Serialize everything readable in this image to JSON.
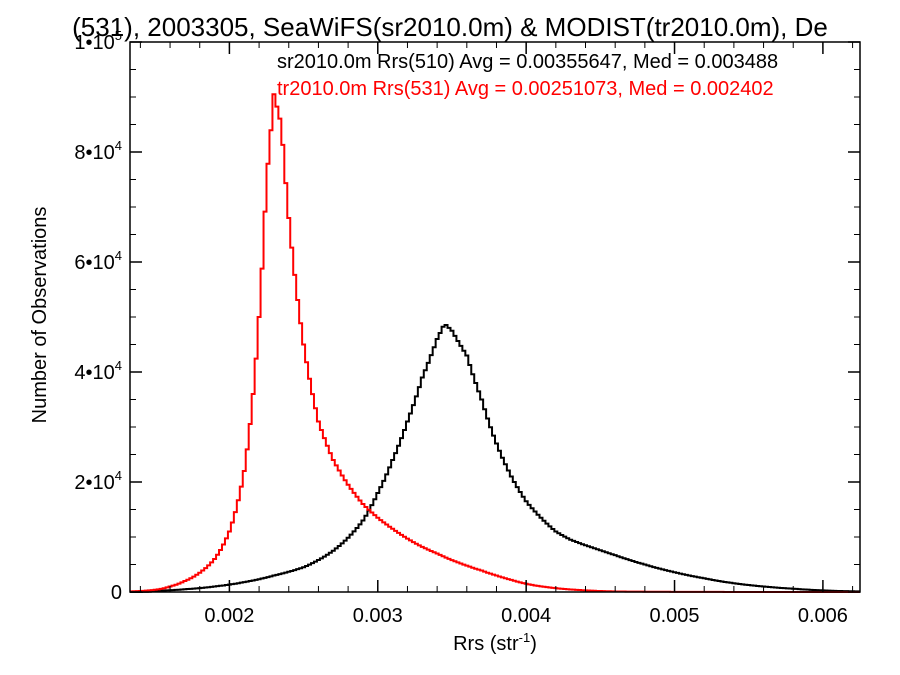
{
  "chart_data": {
    "type": "histogram",
    "title": "(531), 2003305, SeaWiFS(sr2010.0m) & MODIST(tr2010.0m), De",
    "xlabel": "Rrs (str",
    "xlabel_sup": "-1",
    "xlabel_close": ")",
    "ylabel": "Number of Observations",
    "xlim": [
      0.00133,
      0.00625
    ],
    "ylim": [
      0,
      100000
    ],
    "x_ticks": [
      {
        "value": 0.002,
        "label": "0.002"
      },
      {
        "value": 0.003,
        "label": "0.003"
      },
      {
        "value": 0.004,
        "label": "0.004"
      },
      {
        "value": 0.005,
        "label": "0.005"
      },
      {
        "value": 0.006,
        "label": "0.006"
      }
    ],
    "y_ticks": [
      {
        "value": 0,
        "base": "0",
        "exp": ""
      },
      {
        "value": 20000,
        "base": "2•10",
        "exp": "4"
      },
      {
        "value": 40000,
        "base": "4•10",
        "exp": "4"
      },
      {
        "value": 60000,
        "base": "6•10",
        "exp": "4"
      },
      {
        "value": 80000,
        "base": "8•10",
        "exp": "4"
      },
      {
        "value": 100000,
        "base": "1•10",
        "exp": "5"
      }
    ],
    "annotations": [
      {
        "text": "sr2010.0m Rrs(510) Avg = 0.00355647, Med = 0.003488",
        "color": "#000000"
      },
      {
        "text": "tr2010.0m Rrs(531) Avg = 0.00251073, Med = 0.002402",
        "color": "#ff0000"
      }
    ],
    "series": [
      {
        "color": "#000000",
        "x": [
          0.00133,
          0.0015,
          0.0017,
          0.0019,
          0.0021,
          0.0023,
          0.0025,
          0.0027,
          0.0029,
          0.003,
          0.0031,
          0.0032,
          0.0033,
          0.0034,
          0.00345,
          0.0035,
          0.0036,
          0.0037,
          0.0038,
          0.0039,
          0.004,
          0.0041,
          0.0042,
          0.0043,
          0.0044,
          0.0045,
          0.0046,
          0.0047,
          0.0048,
          0.005,
          0.0052,
          0.0054,
          0.0056,
          0.0058,
          0.006,
          0.00625
        ],
        "y": [
          0,
          200,
          500,
          1000,
          1800,
          3000,
          4500,
          7500,
          13000,
          18000,
          24000,
          31000,
          39000,
          46000,
          48800,
          47500,
          43000,
          35000,
          27000,
          21000,
          16500,
          13500,
          11000,
          9500,
          8500,
          7600,
          6700,
          5800,
          5000,
          3600,
          2500,
          1600,
          1000,
          600,
          300,
          100
        ]
      },
      {
        "color": "#ff0000",
        "x": [
          0.00133,
          0.0015,
          0.0016,
          0.0017,
          0.0018,
          0.0019,
          0.002,
          0.0021,
          0.0022,
          0.00225,
          0.0023,
          0.00235,
          0.0024,
          0.0025,
          0.0026,
          0.0027,
          0.0028,
          0.0029,
          0.003,
          0.0031,
          0.0032,
          0.0033,
          0.0034,
          0.0035,
          0.0036,
          0.0037,
          0.0038,
          0.0039,
          0.004,
          0.0042,
          0.0044,
          0.0046,
          0.005,
          0.00625
        ],
        "y": [
          100,
          400,
          1000,
          2000,
          3500,
          6000,
          11000,
          22000,
          50000,
          75000,
          90500,
          85000,
          68000,
          45000,
          31000,
          24000,
          19500,
          16000,
          13500,
          11500,
          9700,
          8200,
          7000,
          5800,
          4800,
          3900,
          3000,
          2200,
          1500,
          700,
          300,
          100,
          30,
          0
        ]
      }
    ]
  }
}
